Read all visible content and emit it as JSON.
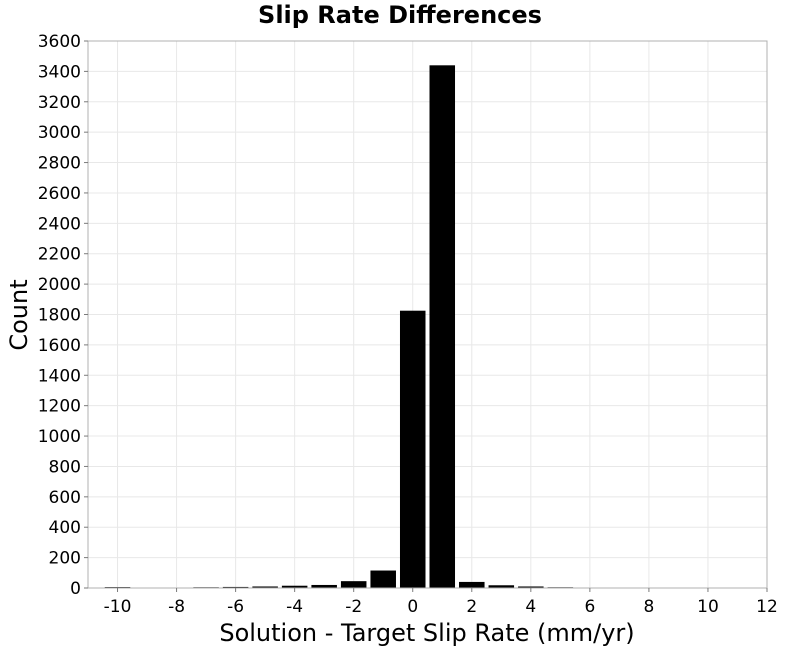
{
  "chart_data": {
    "type": "bar",
    "title": "Slip Rate Differences",
    "xlabel": "Solution - Target Slip Rate (mm/yr)",
    "ylabel": "Count",
    "xlim": [
      -11,
      12
    ],
    "ylim": [
      0,
      3600
    ],
    "xticks": [
      -10,
      -8,
      -6,
      -4,
      -2,
      0,
      2,
      4,
      6,
      8,
      10,
      12
    ],
    "xtick_labels": [
      "-10",
      "-8",
      "-6",
      "-4",
      "-2",
      "0",
      "2",
      "4",
      "6",
      "8",
      "10",
      "12"
    ],
    "yticks": [
      0,
      200,
      400,
      600,
      800,
      1000,
      1200,
      1400,
      1600,
      1800,
      2000,
      2200,
      2400,
      2600,
      2800,
      3000,
      3200,
      3400,
      3600
    ],
    "ytick_labels": [
      "0",
      "200",
      "400",
      "600",
      "800",
      "1000",
      "1200",
      "1400",
      "1600",
      "1800",
      "2000",
      "2200",
      "2400",
      "2600",
      "2800",
      "3000",
      "3200",
      "3400",
      "3600"
    ],
    "grid": true,
    "legend": "none",
    "bar_color": "#000000",
    "bin_width": 1,
    "bins": [
      -10,
      -9,
      -8,
      -7,
      -6,
      -5,
      -4,
      -3,
      -2,
      -1,
      0,
      1,
      2,
      3,
      4,
      5,
      6,
      7,
      8,
      9,
      10,
      11
    ],
    "values": [
      6,
      3,
      3,
      5,
      7,
      10,
      15,
      20,
      45,
      115,
      1825,
      3440,
      40,
      18,
      10,
      5,
      3,
      2,
      1,
      0,
      0,
      0
    ]
  }
}
